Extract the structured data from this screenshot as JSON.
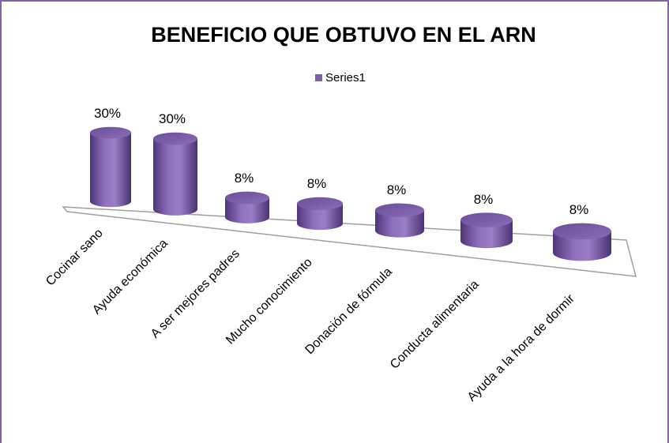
{
  "chart_data": {
    "type": "bar3d",
    "title": "BENEFICIO QUE OBTUVO EN EL ARN",
    "categories": [
      "Cocinar sano",
      "Ayuda económica",
      "A ser mejores padres",
      "Mucho conocimiento",
      "Donación de fórmula",
      "Conducta alimentaria",
      "Ayuda a la hora de dormir"
    ],
    "series": [
      {
        "name": "Series1",
        "color": "#7b5ea7",
        "values": [
          30,
          30,
          8,
          8,
          8,
          8,
          8
        ],
        "value_labels": [
          "30%",
          "30%",
          "8%",
          "8%",
          "8%",
          "8%",
          "8%"
        ]
      }
    ],
    "legend": "top"
  }
}
